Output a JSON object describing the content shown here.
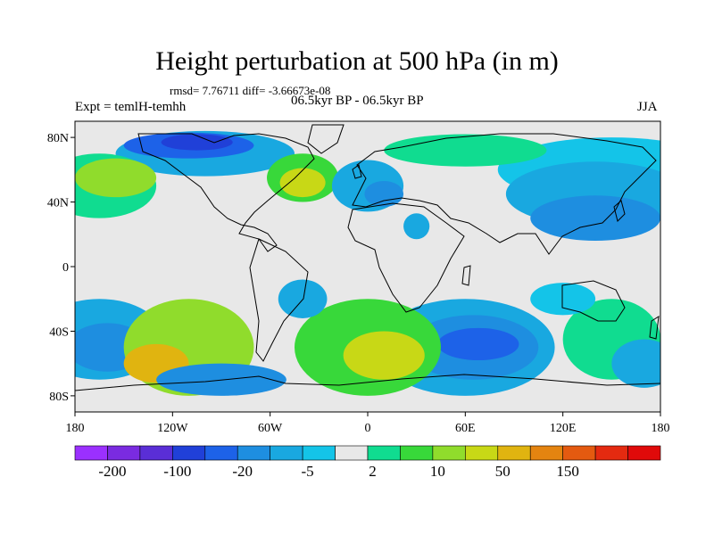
{
  "title": "Height perturbation at 500 hPa (in m)",
  "stats": "rmsd= 7.76711 diff= -3.66673e-08",
  "expt": "Expt = temlH-temhh",
  "period": "06.5kyr BP - 06.5kyr BP",
  "season": "JJA",
  "axes": {
    "lat_ticks": [
      "80N",
      "40N",
      "0",
      "40S",
      "80S"
    ],
    "lon_ticks": [
      "180",
      "120W",
      "60W",
      "0",
      "60E",
      "120E",
      "180"
    ]
  },
  "colorbar": {
    "colors": [
      "#9b30ff",
      "#7a2be0",
      "#5a2ed6",
      "#2040d8",
      "#1d62e8",
      "#1e8ee0",
      "#19a8e0",
      "#14c4e8",
      "#e8e8e8",
      "#10dc90",
      "#38d83a",
      "#90dc2c",
      "#c8d816",
      "#e0b410",
      "#e48410",
      "#e45a10",
      "#e42a10",
      "#e00a0a"
    ],
    "labels": [
      "-200",
      "-100",
      "-20",
      "-5",
      "2",
      "10",
      "50",
      "150"
    ]
  },
  "fields": {
    "background": "#e8e8e8",
    "patches": [
      {
        "cx": 150,
        "cy": 60,
        "rx": 70,
        "ry": 20,
        "level": 7
      },
      {
        "cx": 140,
        "cy": 45,
        "rx": 55,
        "ry": 20,
        "level": 6
      },
      {
        "cx": 140,
        "cy": 30,
        "rx": 40,
        "ry": 14,
        "level": 5
      },
      {
        "cx": -100,
        "cy": 70,
        "rx": 55,
        "ry": 14,
        "level": 6
      },
      {
        "cx": -110,
        "cy": 75,
        "rx": 40,
        "ry": 8,
        "level": 4
      },
      {
        "cx": -105,
        "cy": 77,
        "rx": 22,
        "ry": 5,
        "level": 3
      },
      {
        "cx": -165,
        "cy": 50,
        "rx": 35,
        "ry": 20,
        "level": 9
      },
      {
        "cx": -155,
        "cy": 55,
        "rx": 25,
        "ry": 12,
        "level": 11
      },
      {
        "cx": -40,
        "cy": 55,
        "rx": 22,
        "ry": 15,
        "level": 10
      },
      {
        "cx": -40,
        "cy": 52,
        "rx": 14,
        "ry": 9,
        "level": 12
      },
      {
        "cx": 0,
        "cy": 50,
        "rx": 22,
        "ry": 16,
        "level": 6
      },
      {
        "cx": 10,
        "cy": 45,
        "rx": 12,
        "ry": 8,
        "level": 5
      },
      {
        "cx": 60,
        "cy": 72,
        "rx": 50,
        "ry": 10,
        "level": 9
      },
      {
        "cx": 30,
        "cy": 25,
        "rx": 8,
        "ry": 8,
        "level": 6
      },
      {
        "cx": -165,
        "cy": -45,
        "rx": 40,
        "ry": 25,
        "level": 6
      },
      {
        "cx": -160,
        "cy": -50,
        "rx": 25,
        "ry": 15,
        "level": 5
      },
      {
        "cx": -110,
        "cy": -50,
        "rx": 40,
        "ry": 30,
        "level": 11
      },
      {
        "cx": -130,
        "cy": -60,
        "rx": 20,
        "ry": 12,
        "level": 13
      },
      {
        "cx": -90,
        "cy": -70,
        "rx": 40,
        "ry": 10,
        "level": 5
      },
      {
        "cx": 60,
        "cy": -50,
        "rx": 55,
        "ry": 30,
        "level": 6
      },
      {
        "cx": 65,
        "cy": -50,
        "rx": 40,
        "ry": 20,
        "level": 5
      },
      {
        "cx": 68,
        "cy": -48,
        "rx": 25,
        "ry": 10,
        "level": 4
      },
      {
        "cx": 0,
        "cy": -50,
        "rx": 45,
        "ry": 30,
        "level": 10
      },
      {
        "cx": 10,
        "cy": -55,
        "rx": 25,
        "ry": 15,
        "level": 12
      },
      {
        "cx": 150,
        "cy": -45,
        "rx": 30,
        "ry": 25,
        "level": 9
      },
      {
        "cx": 170,
        "cy": -60,
        "rx": 20,
        "ry": 15,
        "level": 6
      },
      {
        "cx": -40,
        "cy": -20,
        "rx": 15,
        "ry": 12,
        "level": 6
      },
      {
        "cx": 120,
        "cy": -20,
        "rx": 20,
        "ry": 10,
        "level": 7
      }
    ]
  }
}
